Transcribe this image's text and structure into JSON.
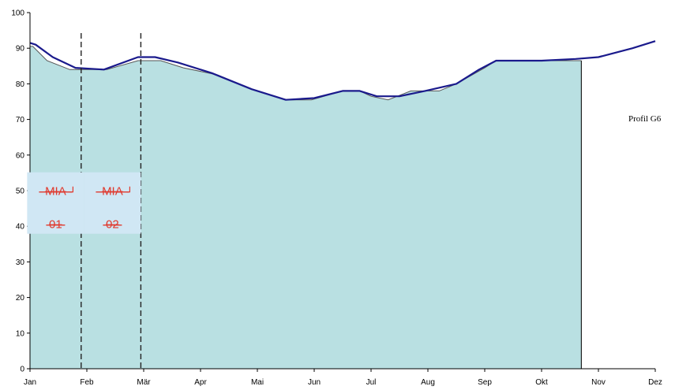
{
  "chart_data": {
    "type": "area",
    "title": "",
    "xlabel": "",
    "ylabel": "",
    "ylim": [
      0,
      100
    ],
    "yticks": [
      0,
      10,
      20,
      30,
      40,
      50,
      60,
      70,
      80,
      90,
      100
    ],
    "month_labels": [
      "Jan",
      "Feb",
      "Mär",
      "Apr",
      "Mai",
      "Jun",
      "Jul",
      "Aug",
      "Sep",
      "Okt",
      "Nov",
      "Dez"
    ],
    "series": [
      {
        "kind": "area",
        "color": "#b9e0e2",
        "x": [
          0,
          0.05,
          0.3,
          0.7,
          0.9,
          1.35,
          1.9,
          2.3,
          2.7,
          3.3,
          3.9,
          4.5,
          4.95,
          5.5,
          5.8,
          6.0,
          6.3,
          6.7,
          6.95,
          7.2,
          7.5,
          8.0,
          8.2,
          8.6,
          9.0,
          9.5,
          9.7
        ],
        "y": [
          90.5,
          90.5,
          86.5,
          84.0,
          84.0,
          84.0,
          86.5,
          86.5,
          84.5,
          82.5,
          78.5,
          75.5,
          75.5,
          78.0,
          78.0,
          76.5,
          75.5,
          78.0,
          78.0,
          78.0,
          80.0,
          84.5,
          86.5,
          86.5,
          86.5,
          86.5,
          86.5
        ]
      },
      {
        "kind": "line",
        "color": "#1a1a8c",
        "x": [
          0,
          0.1,
          0.4,
          0.8,
          1.3,
          1.9,
          2.2,
          2.6,
          3.2,
          3.9,
          4.5,
          5.0,
          5.5,
          5.8,
          6.1,
          6.5,
          6.95,
          7.5,
          7.9,
          8.2,
          8.5,
          9.0,
          9.6,
          10.0,
          10.6,
          11.0
        ],
        "y": [
          91.5,
          91.0,
          87.5,
          84.5,
          84.0,
          87.5,
          87.5,
          86.0,
          83.0,
          78.5,
          75.5,
          76.0,
          78.0,
          78.0,
          76.5,
          76.5,
          78.0,
          80.0,
          84.0,
          86.5,
          86.5,
          86.5,
          87.0,
          87.5,
          90.0,
          92.0
        ]
      }
    ],
    "vlines_dashed": [
      0.9,
      1.95
    ],
    "profile_label": "Profil G6",
    "mia_boxes": [
      {
        "line1": "MIA",
        "line2": "01",
        "x": 0.45,
        "y": 41
      },
      {
        "line1": "MIA",
        "line2": "02",
        "x": 1.45,
        "y": 41
      }
    ]
  }
}
